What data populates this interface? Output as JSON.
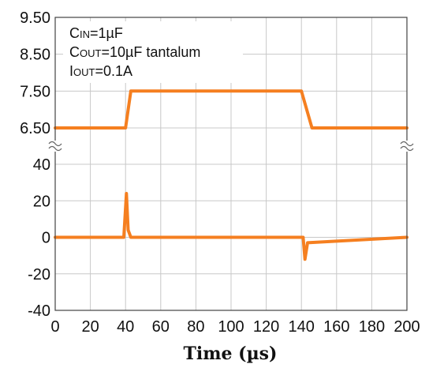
{
  "chart_data": {
    "type": "line",
    "title": "",
    "xlabel": "Time (µs)",
    "xlim": [
      0,
      200
    ],
    "x_ticks": [
      "0",
      "20",
      "40",
      "60",
      "80",
      "100",
      "120",
      "140",
      "160",
      "180",
      "200"
    ],
    "grid": true,
    "line_color": "#F57F20",
    "upper_panel": {
      "ylim": [
        6.5,
        9.5
      ],
      "y_ticks": [
        "9.50",
        "8.50",
        "7.50",
        "6.50"
      ],
      "series": [
        {
          "x": [
            0,
            40,
            43,
            140,
            146,
            200
          ],
          "y": [
            6.5,
            6.5,
            7.5,
            7.5,
            6.5,
            6.5
          ]
        }
      ]
    },
    "lower_panel": {
      "ylim": [
        -40,
        40
      ],
      "y_ticks": [
        "40",
        "20",
        "0",
        "-20",
        "-40"
      ],
      "series": [
        {
          "x": [
            0,
            39,
            40.5,
            41.5,
            43,
            141,
            142,
            143.5,
            200
          ],
          "y": [
            0,
            0,
            24,
            4,
            0,
            0,
            -12,
            -3,
            0
          ]
        }
      ]
    },
    "annotations": [
      {
        "main": "C",
        "sub": "IN",
        "rest": "=1µF"
      },
      {
        "main": "C",
        "sub": "OUT",
        "rest": "=10µF tantalum"
      },
      {
        "main": "I",
        "sub": "OUT",
        "rest": "=0.1A"
      }
    ]
  }
}
